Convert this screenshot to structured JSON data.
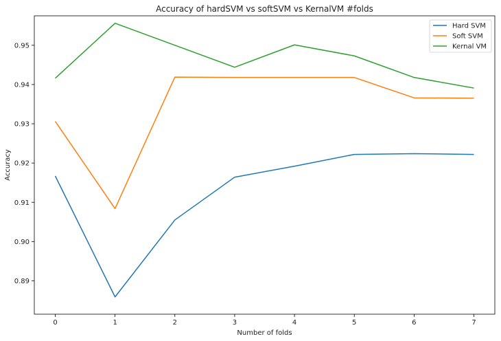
{
  "chart_data": {
    "type": "line",
    "title": "Accuracy of hardSVM vs softSVM vs KernalVM #folds",
    "xlabel": "Number of folds",
    "ylabel": "Accuracy",
    "x": [
      0,
      1,
      2,
      3,
      4,
      5,
      6,
      7
    ],
    "xlim": [
      -0.35,
      7.35
    ],
    "ylim": [
      0.8815,
      0.9575
    ],
    "xticks": [
      0,
      1,
      2,
      3,
      4,
      5,
      6,
      7
    ],
    "yticks": [
      0.89,
      0.9,
      0.91,
      0.92,
      0.93,
      0.94,
      0.95
    ],
    "ytick_labels": [
      "0.89",
      "0.90",
      "0.91",
      "0.92",
      "0.93",
      "0.94",
      "0.95"
    ],
    "grid": false,
    "legend_position": "top-right",
    "series": [
      {
        "name": "Hard SVM",
        "color": "#1f77b4",
        "values": [
          0.9167,
          0.8859,
          0.9055,
          0.9164,
          0.9192,
          0.9222,
          0.9224,
          0.9222
        ]
      },
      {
        "name": "Soft SVM",
        "color": "#ff7f0e",
        "values": [
          0.9306,
          0.9084,
          0.9419,
          0.9418,
          0.9418,
          0.9418,
          0.9366,
          0.9365
        ]
      },
      {
        "name": "Kernal VM",
        "color": "#2ca02c",
        "values": [
          0.9416,
          0.9556,
          0.95,
          0.9444,
          0.9501,
          0.9473,
          0.9418,
          0.9391
        ]
      }
    ]
  }
}
